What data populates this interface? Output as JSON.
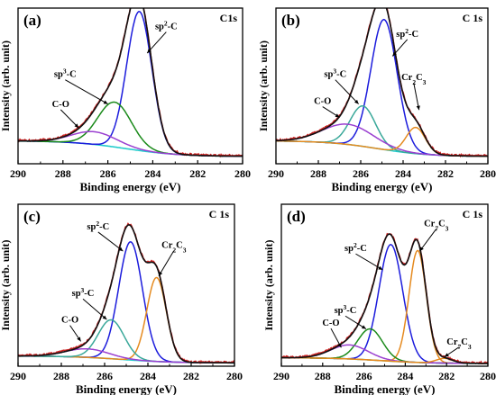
{
  "figure": {
    "panel_count": 4,
    "layout": "2x2 grid"
  },
  "chart_data": [
    {
      "type": "line",
      "panel_label": "(a)",
      "corner_label": "C1s",
      "xlabel": "Binding energy (eV)",
      "ylabel": "Intensity (arb. unit)",
      "xlim": [
        290,
        280
      ],
      "x_ticks": [
        290,
        288,
        286,
        284,
        282,
        280
      ],
      "x_reversed": true,
      "y_ticks_shown": false,
      "baseline_level": 0.14,
      "envelope": {
        "raw_color": "#cc2222",
        "fit_color": "#111111"
      },
      "background_color": "#22cccc",
      "series": [
        {
          "name": "sp2-C",
          "center": 284.6,
          "height": 0.93,
          "width": 0.56,
          "color": "#1c1cdc",
          "asym_high_be": 1.0
        },
        {
          "name": "sp3-C",
          "center": 285.7,
          "height": 0.3,
          "width": 0.75,
          "color": "#1a8a1a"
        },
        {
          "name": "C-O",
          "center": 286.6,
          "height": 0.085,
          "width": 1.0,
          "color": "#9a3fd0"
        }
      ],
      "peak_labels": [
        {
          "series": "sp2-C",
          "text_main": "sp",
          "text_sup": "2",
          "text_tail": "-C",
          "anchor_x": 283.4,
          "anchor_y": 0.9,
          "target_x": 284.25,
          "target_y": 0.74
        },
        {
          "series": "sp3-C",
          "text_main": "sp",
          "text_sup": "3",
          "text_tail": "-C",
          "anchor_x": 287.9,
          "anchor_y": 0.58,
          "target_x": 286.0,
          "target_y": 0.4
        },
        {
          "series": "C-O",
          "text_main": "C-O",
          "anchor_x": 288.1,
          "anchor_y": 0.38,
          "target_x": 287.3,
          "target_y": 0.24
        }
      ]
    },
    {
      "type": "line",
      "panel_label": "(b)",
      "corner_label": "C 1s",
      "xlabel": "Binding energy (eV)",
      "ylabel": "Intensity (arb. unit)",
      "xlim": [
        290,
        280
      ],
      "x_ticks": [
        290,
        288,
        286,
        284,
        282,
        280
      ],
      "x_reversed": true,
      "y_ticks_shown": false,
      "baseline_level": 0.14,
      "envelope": {
        "raw_color": "#cc2222",
        "fit_color": "#111111"
      },
      "background_color": "#22cccc",
      "series": [
        {
          "name": "sp2-C",
          "center": 284.9,
          "height": 0.87,
          "width": 0.62,
          "color": "#1c1cdc"
        },
        {
          "name": "sp3-C",
          "center": 285.9,
          "height": 0.27,
          "width": 0.6,
          "color": "#3aa89a"
        },
        {
          "name": "C-O",
          "center": 286.6,
          "height": 0.135,
          "width": 1.2,
          "color": "#9a3fd0"
        },
        {
          "name": "Cr2C3",
          "center": 283.4,
          "height": 0.175,
          "width": 0.45,
          "color": "#e58a1f"
        }
      ],
      "peak_labels": [
        {
          "series": "sp2-C",
          "text_main": "sp",
          "text_sup": "2",
          "text_tail": "-C",
          "anchor_x": 283.8,
          "anchor_y": 0.85,
          "target_x": 284.5,
          "target_y": 0.72
        },
        {
          "series": "sp3-C",
          "text_main": "sp",
          "text_sup": "3",
          "text_tail": "-C",
          "anchor_x": 287.2,
          "anchor_y": 0.58,
          "target_x": 286.1,
          "target_y": 0.4
        },
        {
          "series": "C-O",
          "text_main": "C-O",
          "anchor_x": 287.8,
          "anchor_y": 0.4,
          "target_x": 287.0,
          "target_y": 0.31
        },
        {
          "series": "Cr2C3",
          "text_main": "Cr",
          "text_sub": "2",
          "text_tail": "C",
          "text_sub2": "3",
          "anchor_x": 283.5,
          "anchor_y": 0.56,
          "target_x": 283.25,
          "target_y": 0.36
        }
      ]
    },
    {
      "type": "line",
      "panel_label": "(c)",
      "corner_label": "C 1s",
      "xlabel": "Binding energy (eV)",
      "ylabel": "Intensity (arb. unit)",
      "xlim": [
        290,
        280
      ],
      "x_ticks": [
        290,
        288,
        286,
        284,
        282,
        280
      ],
      "x_reversed": true,
      "y_ticks_shown": false,
      "baseline_level": 0.06,
      "envelope": {
        "raw_color": "#cc2222",
        "fit_color": "#111111"
      },
      "background_color": "#22cccc",
      "series": [
        {
          "name": "sp2-C",
          "center": 284.8,
          "height": 0.76,
          "width": 0.55,
          "color": "#1c1cdc"
        },
        {
          "name": "Cr2C3",
          "center": 283.6,
          "height": 0.54,
          "width": 0.45,
          "color": "#e58a1f"
        },
        {
          "name": "sp3-C",
          "center": 285.7,
          "height": 0.25,
          "width": 0.6,
          "color": "#3aa89a"
        },
        {
          "name": "C-O",
          "center": 286.8,
          "height": 0.055,
          "width": 1.0,
          "color": "#9a3fd0"
        }
      ],
      "peak_labels": [
        {
          "series": "sp2-C",
          "text_main": "sp",
          "text_sup": "2",
          "text_tail": "-C",
          "anchor_x": 286.3,
          "anchor_y": 0.88,
          "target_x": 285.15,
          "target_y": 0.74
        },
        {
          "series": "Cr2C3",
          "text_main": "Cr",
          "text_sub": "2",
          "text_tail": "C",
          "text_sub2": "3",
          "anchor_x": 282.8,
          "anchor_y": 0.76,
          "target_x": 283.5,
          "target_y": 0.58
        },
        {
          "series": "sp3-C",
          "text_main": "sp",
          "text_sup": "3",
          "text_tail": "-C",
          "anchor_x": 287.0,
          "anchor_y": 0.45,
          "target_x": 285.9,
          "target_y": 0.3
        },
        {
          "series": "C-O",
          "text_main": "C-O",
          "anchor_x": 287.6,
          "anchor_y": 0.28,
          "target_x": 287.1,
          "target_y": 0.16
        }
      ]
    },
    {
      "type": "line",
      "panel_label": "(d)",
      "corner_label": "C 1s",
      "xlabel": "Binding energy (eV)",
      "ylabel": "Intensity (arb. unit)",
      "xlim": [
        290,
        280
      ],
      "x_ticks": [
        290,
        288,
        286,
        284,
        282,
        280
      ],
      "x_reversed": true,
      "y_ticks_shown": false,
      "baseline_level": 0.05,
      "envelope": {
        "raw_color": "#cc2222",
        "fit_color": "#111111"
      },
      "background_color": "#22cccc",
      "series": [
        {
          "name": "sp2-C",
          "center": 284.7,
          "height": 0.75,
          "width": 0.58,
          "color": "#1c1cdc"
        },
        {
          "name": "Cr7C3",
          "center": 283.4,
          "height": 0.72,
          "width": 0.42,
          "color": "#e58a1f"
        },
        {
          "name": "sp3-C",
          "center": 285.7,
          "height": 0.2,
          "width": 0.6,
          "color": "#1a8a1a"
        },
        {
          "name": "C-O",
          "center": 286.7,
          "height": 0.09,
          "width": 0.9,
          "color": "#9a3fd0"
        },
        {
          "name": "Cr7C3-2",
          "center": 282.1,
          "height": 0.03,
          "width": 0.4,
          "color": "#e58a1f"
        }
      ],
      "peak_labels": [
        {
          "series": "sp2-C",
          "text_main": "sp",
          "text_sup": "2",
          "text_tail": "-C",
          "anchor_x": 286.4,
          "anchor_y": 0.74,
          "target_x": 285.1,
          "target_y": 0.62
        },
        {
          "series": "Cr7C3",
          "text_main": "Cr",
          "text_sub": "7",
          "text_tail": "C",
          "text_sub2": "3",
          "anchor_x": 282.5,
          "anchor_y": 0.9,
          "target_x": 283.3,
          "target_y": 0.74
        },
        {
          "series": "sp3-C",
          "text_main": "sp",
          "text_sup": "3",
          "text_tail": "-C",
          "anchor_x": 286.9,
          "anchor_y": 0.34,
          "target_x": 285.9,
          "target_y": 0.24
        },
        {
          "series": "C-O",
          "text_main": "C-O",
          "anchor_x": 287.6,
          "anchor_y": 0.26,
          "target_x": 287.1,
          "target_y": 0.12
        },
        {
          "series": "Cr7C3-2",
          "text_main": "Cr",
          "text_sub": "7",
          "text_tail": "C",
          "text_sub2": "3",
          "anchor_x": 281.4,
          "anchor_y": 0.14,
          "target_x": 282.1,
          "target_y": 0.06
        }
      ]
    }
  ]
}
